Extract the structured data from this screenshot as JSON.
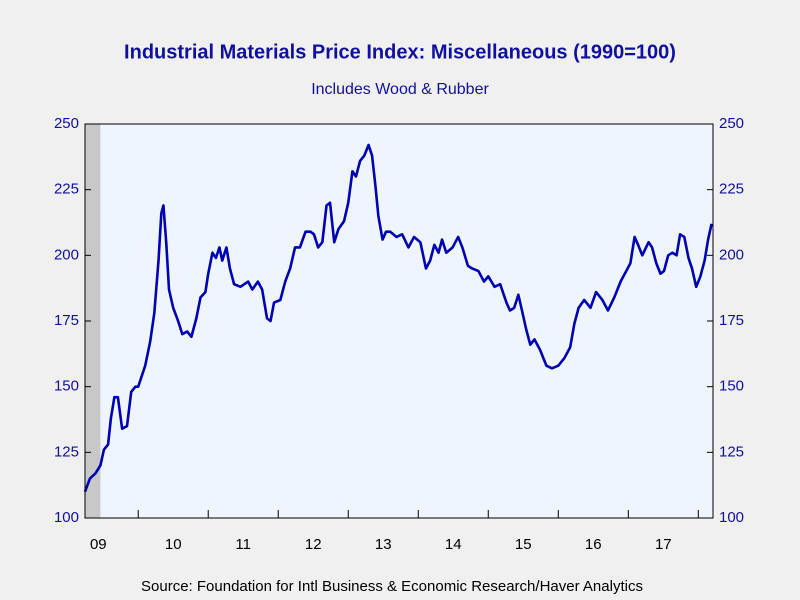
{
  "chart_data": {
    "type": "line",
    "title": "Industrial Materials Price Index: Miscellaneous (1990=100)",
    "subtitle": "Includes Wood & Rubber",
    "source": "Source:  Foundation for Intl Business & Economic Research/Haver Analytics",
    "xlim": [
      2009.24,
      2018.21
    ],
    "ylim": [
      100,
      250
    ],
    "yticks": [
      100,
      125,
      150,
      175,
      200,
      225,
      250
    ],
    "xticks": [
      2010,
      2011,
      2012,
      2013,
      2014,
      2015,
      2016,
      2017,
      2018
    ],
    "xtick_labels": [
      {
        "value": 2009.43,
        "label": "09"
      },
      {
        "value": 2010.5,
        "label": "10"
      },
      {
        "value": 2011.5,
        "label": "11"
      },
      {
        "value": 2012.5,
        "label": "12"
      },
      {
        "value": 2013.5,
        "label": "13"
      },
      {
        "value": 2014.5,
        "label": "14"
      },
      {
        "value": 2015.5,
        "label": "15"
      },
      {
        "value": 2016.5,
        "label": "16"
      },
      {
        "value": 2017.5,
        "label": "17"
      }
    ],
    "recession": [
      2009.24,
      2009.46
    ],
    "series": [
      {
        "color": "#0000b4",
        "x": [
          2009.24,
          2009.31,
          2009.39,
          2009.46,
          2009.51,
          2009.57,
          2009.61,
          2009.66,
          2009.71,
          2009.77,
          2009.84,
          2009.9,
          2009.96,
          2010.0,
          2010.1,
          2010.17,
          2010.23,
          2010.29,
          2010.33,
          2010.36,
          2010.4,
          2010.44,
          2010.5,
          2010.57,
          2010.63,
          2010.7,
          2010.76,
          2010.83,
          2010.89,
          2010.96,
          2011.0,
          2011.06,
          2011.11,
          2011.16,
          2011.2,
          2011.26,
          2011.31,
          2011.37,
          2011.46,
          2011.57,
          2011.63,
          2011.71,
          2011.77,
          2011.84,
          2011.89,
          2011.94,
          2012.03,
          2012.1,
          2012.17,
          2012.24,
          2012.31,
          2012.39,
          2012.46,
          2012.51,
          2012.57,
          2012.63,
          2012.69,
          2012.74,
          2012.8,
          2012.86,
          2012.94,
          2013.0,
          2013.06,
          2013.11,
          2013.17,
          2013.23,
          2013.29,
          2013.34,
          2013.39,
          2013.43,
          2013.49,
          2013.54,
          2013.6,
          2013.69,
          2013.77,
          2013.86,
          2013.94,
          2014.03,
          2014.11,
          2014.17,
          2014.23,
          2014.29,
          2014.34,
          2014.4,
          2014.49,
          2014.57,
          2014.63,
          2014.71,
          2014.77,
          2014.86,
          2014.94,
          2015.0,
          2015.09,
          2015.17,
          2015.26,
          2015.31,
          2015.37,
          2015.43,
          2015.49,
          2015.54,
          2015.6,
          2015.66,
          2015.74,
          2015.83,
          2015.91,
          2016.0,
          2016.09,
          2016.17,
          2016.23,
          2016.29,
          2016.37,
          2016.46,
          2016.54,
          2016.63,
          2016.71,
          2016.8,
          2016.89,
          2016.97,
          2017.03,
          2017.09,
          2017.14,
          2017.2,
          2017.29,
          2017.34,
          2017.4,
          2017.46,
          2017.51,
          2017.57,
          2017.63,
          2017.69,
          2017.74,
          2017.8,
          2017.86,
          2017.91,
          2017.97,
          2018.03,
          2018.09,
          2018.14,
          2018.19
        ],
        "values": [
          110,
          115,
          117,
          120,
          126,
          128,
          138,
          146,
          146,
          134,
          135,
          148,
          150,
          150,
          158,
          167,
          178,
          198,
          216,
          219,
          205,
          187,
          180,
          175,
          170,
          171,
          169,
          176,
          184,
          186,
          193,
          201,
          199,
          203,
          198,
          203,
          195,
          189,
          188,
          190,
          187,
          190,
          187,
          176,
          175,
          182,
          183,
          190,
          195,
          203,
          203,
          209,
          209,
          208,
          203,
          205,
          219,
          220,
          205,
          210,
          213,
          220,
          232,
          230,
          236,
          238,
          242,
          238,
          226,
          215,
          206,
          209,
          209,
          207,
          208,
          203,
          207,
          205,
          195,
          198,
          204,
          201,
          206,
          201,
          203,
          207,
          203,
          196,
          195,
          194,
          190,
          192,
          188,
          189,
          182,
          179,
          180,
          185,
          178,
          172,
          166,
          168,
          164,
          158,
          157,
          158,
          161,
          165,
          174,
          180,
          183,
          180,
          186,
          183,
          179,
          184,
          190,
          194,
          197,
          207,
          204,
          200,
          205,
          203,
          197,
          193,
          194,
          200,
          201,
          200,
          208,
          207,
          199,
          195,
          188,
          192,
          198,
          206,
          212
        ]
      }
    ]
  }
}
